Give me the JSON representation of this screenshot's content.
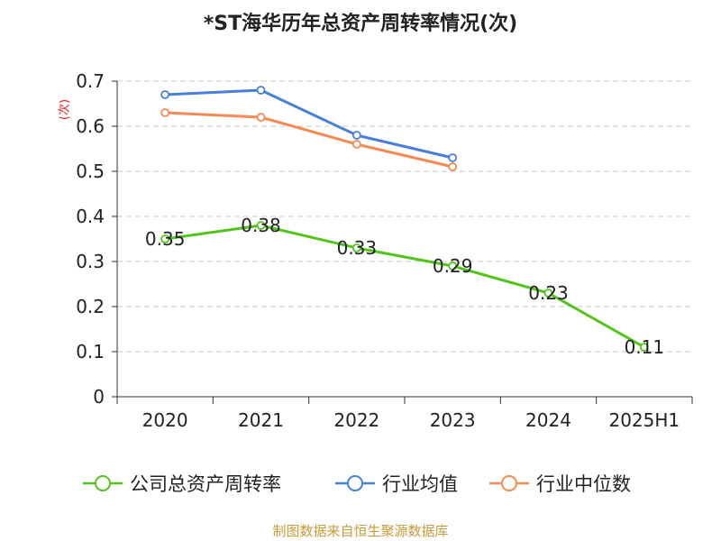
{
  "chart_data": {
    "type": "line",
    "title": "*ST海华历年总资产周转率情况(次)",
    "ylabel": "(次)",
    "categories": [
      "2020",
      "2021",
      "2022",
      "2023",
      "2024",
      "2025H1"
    ],
    "ylim": [
      0,
      0.7
    ],
    "yticks": [
      0,
      0.1,
      0.2,
      0.3,
      0.4,
      0.5,
      0.6,
      0.7
    ],
    "ytick_labels": [
      "0",
      "0.1",
      "0.2",
      "0.3",
      "0.4",
      "0.5",
      "0.6",
      "0.7"
    ],
    "grid": true,
    "legend_position": "bottom",
    "series": [
      {
        "name": "公司总资产周转率",
        "color": "#52c41a",
        "values": [
          0.35,
          0.38,
          0.33,
          0.29,
          0.23,
          0.11
        ],
        "data_labels": [
          "0.35",
          "0.38",
          "0.33",
          "0.29",
          "0.23",
          "0.11"
        ]
      },
      {
        "name": "行业均值",
        "color": "#4a7fd9",
        "values": [
          0.67,
          0.68,
          0.58,
          0.53,
          null,
          null
        ]
      },
      {
        "name": "行业中位数",
        "color": "#f58a55",
        "values": [
          0.63,
          0.62,
          0.56,
          0.51,
          null,
          null
        ]
      }
    ]
  },
  "source": "制图数据来自恒生聚源数据库"
}
